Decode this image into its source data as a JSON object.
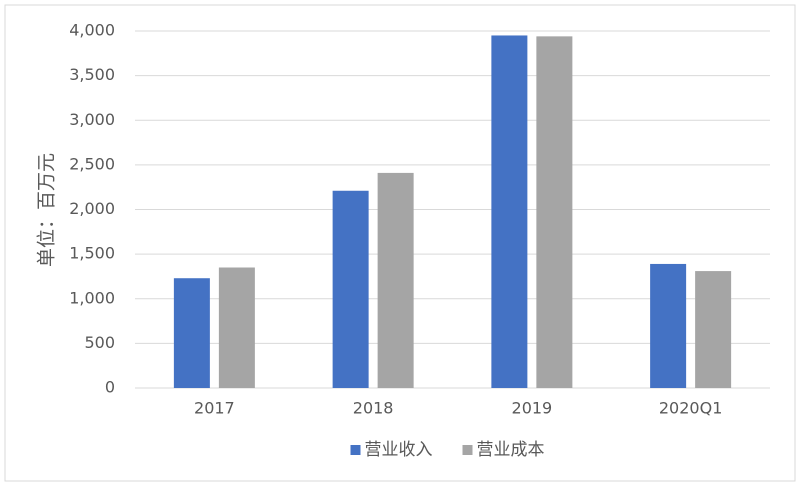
{
  "chart_data": {
    "type": "bar",
    "y_label": "单位：百万元",
    "categories": [
      "2017",
      "2018",
      "2019",
      "2020Q1"
    ],
    "series": [
      {
        "name": "营业收入",
        "color": "#4472c4",
        "values": [
          1230,
          2210,
          3950,
          1390
        ]
      },
      {
        "name": "营业成本",
        "color": "#a5a5a5",
        "values": [
          1350,
          2410,
          3940,
          1310
        ]
      }
    ],
    "ylim": [
      0,
      4000
    ],
    "yticks": [
      0,
      500,
      {
        "value": 1000,
        "label": "1,000"
      },
      {
        "value": 1500,
        "label": "1,500"
      },
      {
        "value": 2000,
        "label": "2,000"
      },
      {
        "value": 2500,
        "label": "2,500"
      },
      {
        "value": 3000,
        "label": "3,000"
      },
      {
        "value": 3500,
        "label": "3,500"
      },
      {
        "value": 4000,
        "label": "4,000"
      }
    ],
    "grid": true,
    "legend": "bottom"
  }
}
